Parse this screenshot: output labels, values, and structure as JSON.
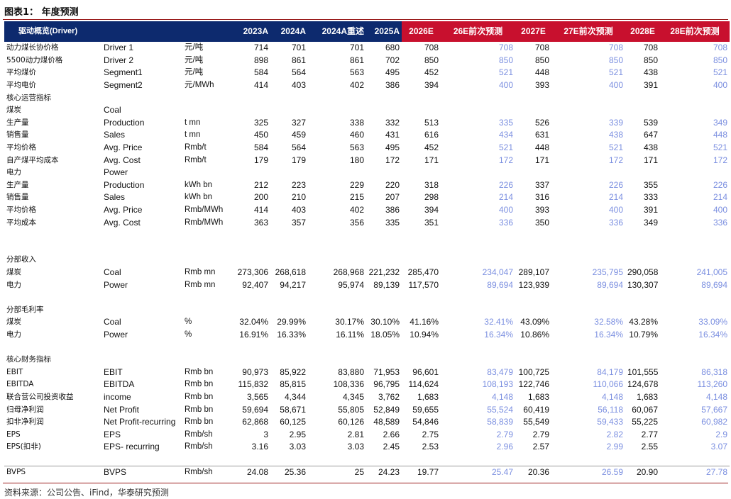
{
  "title": "图表1：  年度预测",
  "source": "资料来源：公司公告、iFind，华泰研究预测",
  "headers": [
    "驱动概览(Driver)",
    "2023A",
    "2024A",
    "2024A重述",
    "2025A",
    "2026E",
    "26E前次预测",
    "2027E",
    "27E前次预测",
    "2028E",
    "28E前次预测"
  ],
  "header_is_estimate": [
    false,
    false,
    false,
    false,
    false,
    true,
    true,
    true,
    true,
    true,
    true
  ],
  "rows": [
    {
      "cn": "动力煤长协价格",
      "en": "Driver 1",
      "unit": "元/吨",
      "vals": [
        "714",
        "701",
        "701",
        "680",
        "708",
        "708",
        "708",
        "708",
        "708",
        "708"
      ]
    },
    {
      "cn": "5500动力煤价格",
      "en": "Driver 2",
      "unit": "元/吨",
      "vals": [
        "898",
        "861",
        "861",
        "702",
        "850",
        "850",
        "850",
        "850",
        "850",
        "850"
      ]
    },
    {
      "cn": "平均煤价",
      "en": "Segment1",
      "unit": "元/吨",
      "vals": [
        "584",
        "564",
        "563",
        "495",
        "452",
        "521",
        "448",
        "521",
        "438",
        "521"
      ]
    },
    {
      "cn": "平均电价",
      "en": "Segment2",
      "unit": "元/MWh",
      "vals": [
        "414",
        "403",
        "402",
        "386",
        "394",
        "400",
        "393",
        "400",
        "391",
        "400"
      ]
    },
    {
      "cn": "核心运营指标",
      "en": "",
      "unit": "",
      "vals": []
    },
    {
      "cn": "煤炭",
      "en": "Coal",
      "unit": "",
      "vals": []
    },
    {
      "cn": "生产量",
      "en": "Production",
      "unit": "t mn",
      "vals": [
        "325",
        "327",
        "338",
        "332",
        "513",
        "335",
        "526",
        "339",
        "539",
        "349"
      ]
    },
    {
      "cn": "销售量",
      "en": "Sales",
      "unit": "t mn",
      "vals": [
        "450",
        "459",
        "460",
        "431",
        "616",
        "434",
        "631",
        "438",
        "647",
        "448"
      ]
    },
    {
      "cn": "平均价格",
      "en": "Avg. Price",
      "unit": "Rmb/t",
      "vals": [
        "584",
        "564",
        "563",
        "495",
        "452",
        "521",
        "448",
        "521",
        "438",
        "521"
      ]
    },
    {
      "cn": "自产煤平均成本",
      "en": "Avg. Cost",
      "unit": "Rmb/t",
      "vals": [
        "179",
        "179",
        "180",
        "172",
        "171",
        "172",
        "171",
        "172",
        "171",
        "172"
      ]
    },
    {
      "cn": "电力",
      "en": "Power",
      "unit": "",
      "vals": []
    },
    {
      "cn": "生产量",
      "en": "Production",
      "unit": "kWh bn",
      "vals": [
        "212",
        "223",
        "229",
        "220",
        "318",
        "226",
        "337",
        "226",
        "355",
        "226"
      ]
    },
    {
      "cn": "销售量",
      "en": "Sales",
      "unit": "kWh bn",
      "vals": [
        "200",
        "210",
        "215",
        "207",
        "298",
        "214",
        "316",
        "214",
        "333",
        "214"
      ]
    },
    {
      "cn": "平均价格",
      "en": "Avg. Price",
      "unit": "Rmb/MWh",
      "vals": [
        "414",
        "403",
        "402",
        "386",
        "394",
        "400",
        "393",
        "400",
        "391",
        "400"
      ]
    },
    {
      "cn": "平均成本",
      "en": "Avg. Cost",
      "unit": "Rmb/MWh",
      "vals": [
        "363",
        "357",
        "356",
        "335",
        "351",
        "336",
        "350",
        "336",
        "349",
        "336"
      ]
    },
    {
      "cn": "",
      "en": "",
      "unit": "",
      "vals": []
    },
    {
      "cn": "",
      "en": "",
      "unit": "",
      "vals": []
    },
    {
      "cn": "分部收入",
      "en": "",
      "unit": "",
      "vals": []
    },
    {
      "cn": "煤炭",
      "en": "Coal",
      "unit": "Rmb mn",
      "vals": [
        "273,306",
        "268,618",
        "268,968",
        "221,232",
        "285,470",
        "234,047",
        "289,107",
        "235,795",
        "290,058",
        "241,005"
      ]
    },
    {
      "cn": "电力",
      "en": "Power",
      "unit": "Rmb mn",
      "vals": [
        "92,407",
        "94,217",
        "95,974",
        "89,139",
        "117,570",
        "89,694",
        "123,939",
        "89,694",
        "130,307",
        "89,694"
      ]
    },
    {
      "cn": "",
      "en": "",
      "unit": "",
      "vals": []
    },
    {
      "cn": "分部毛利率",
      "en": "",
      "unit": "",
      "vals": []
    },
    {
      "cn": "煤炭",
      "en": "Coal",
      "unit": "%",
      "vals": [
        "32.04%",
        "29.99%",
        "30.17%",
        "30.10%",
        "41.16%",
        "32.41%",
        "43.09%",
        "32.58%",
        "43.28%",
        "33.09%"
      ]
    },
    {
      "cn": "电力",
      "en": "Power",
      "unit": "%",
      "vals": [
        "16.91%",
        "16.33%",
        "16.11%",
        "18.05%",
        "10.94%",
        "16.34%",
        "10.86%",
        "16.34%",
        "10.79%",
        "16.34%"
      ]
    },
    {
      "cn": "",
      "en": "",
      "unit": "",
      "vals": []
    },
    {
      "cn": "核心财务指标",
      "en": "",
      "unit": "",
      "vals": []
    },
    {
      "cn": "EBIT",
      "en": "EBIT",
      "unit": "Rmb bn",
      "vals": [
        "90,973",
        "85,922",
        "83,880",
        "71,953",
        "96,601",
        "83,479",
        "100,725",
        "84,179",
        "101,555",
        "86,318"
      ]
    },
    {
      "cn": "EBITDA",
      "en": "EBITDA",
      "unit": "Rmb bn",
      "vals": [
        "115,832",
        "85,815",
        "108,336",
        "96,795",
        "114,624",
        "108,193",
        "122,746",
        "110,066",
        "124,678",
        "113,260"
      ]
    },
    {
      "cn": "联合营公司投资收益",
      "en": "income",
      "unit": "Rmb bn",
      "vals": [
        "3,565",
        "4,344",
        "4,345",
        "3,762",
        "1,683",
        "4,148",
        "1,683",
        "4,148",
        "1,683",
        "4,148"
      ]
    },
    {
      "cn": "归母净利润",
      "en": "Net Profit",
      "unit": "Rmb bn",
      "vals": [
        "59,694",
        "58,671",
        "55,805",
        "52,849",
        "59,655",
        "55,524",
        "60,419",
        "56,118",
        "60,067",
        "57,667"
      ]
    },
    {
      "cn": "扣非净利润",
      "en": "Net Profit-recurring",
      "unit": "Rmb bn",
      "vals": [
        "62,868",
        "60,125",
        "60,126",
        "48,589",
        "54,846",
        "58,839",
        "55,549",
        "59,433",
        "55,225",
        "60,982"
      ]
    },
    {
      "cn": "EPS",
      "en": "EPS",
      "unit": "Rmb/sh",
      "vals": [
        "3",
        "2.95",
        "2.81",
        "2.66",
        "2.75",
        "2.79",
        "2.79",
        "2.82",
        "2.77",
        "2.9"
      ]
    },
    {
      "cn": "EPS(扣非)",
      "en": "EPS- recurring",
      "unit": "Rmb/sh",
      "vals": [
        "3.16",
        "3.03",
        "3.03",
        "2.45",
        "2.53",
        "2.96",
        "2.57",
        "2.99",
        "2.55",
        "3.07"
      ]
    },
    {
      "cn": "",
      "en": "",
      "unit": "",
      "vals": []
    },
    {
      "cn": "BVPS",
      "en": "BVPS",
      "unit": "Rmb/sh",
      "vals": [
        "24.08",
        "25.36",
        "25",
        "24.23",
        "19.77",
        "25.47",
        "20.36",
        "26.59",
        "20.90",
        "27.78"
      ]
    }
  ]
}
